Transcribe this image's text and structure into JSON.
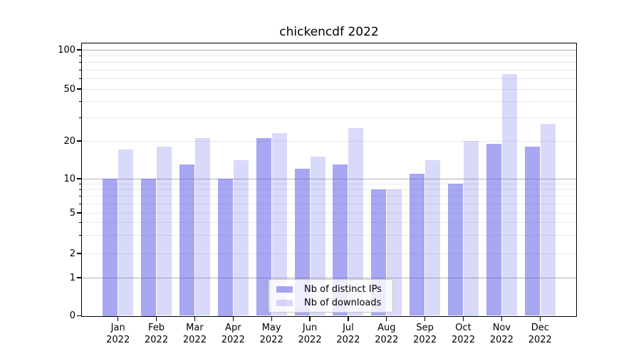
{
  "figure": {
    "title": "chickencdf 2022",
    "background": "#ffffff"
  },
  "legend": {
    "position": "lower center inside plot",
    "entries": [
      {
        "label": "Nb of distinct IPs",
        "swatch_color": "rgba(95,95,232,0.55)"
      },
      {
        "label": "Nb of downloads",
        "swatch_color": "rgba(95,95,232,0.24)"
      }
    ]
  },
  "chart_data": {
    "type": "bar",
    "title": "chickencdf 2022",
    "xlabel": "",
    "ylabel": "",
    "categories": [
      "Jan\n2022",
      "Feb\n2022",
      "Mar\n2022",
      "Apr\n2022",
      "May\n2022",
      "Jun\n2022",
      "Jul\n2022",
      "Aug\n2022",
      "Sep\n2022",
      "Oct\n2022",
      "Nov\n2022",
      "Dec\n2022"
    ],
    "series": [
      {
        "name": "Nb of distinct IPs",
        "color": "rgba(95,95,232,0.55)",
        "values": [
          10,
          10,
          13,
          10,
          21,
          12,
          13,
          8,
          11,
          9,
          19,
          18
        ]
      },
      {
        "name": "Nb of downloads",
        "color": "rgba(95,95,232,0.24)",
        "values": [
          17,
          18,
          21,
          14,
          23,
          15,
          25,
          8,
          14,
          20,
          65,
          27
        ]
      }
    ],
    "yscale": "asinh-symlog (linear 0-1, logarithmic above)",
    "ylim": [
      0,
      112
    ],
    "y_labeled_ticks": [
      0,
      1,
      2,
      5,
      10,
      20,
      50,
      100
    ],
    "y_minor_gridlines": [
      3,
      4,
      6,
      7,
      8,
      9,
      30,
      40,
      60,
      70,
      80,
      90
    ],
    "y_dark_gridlines": [
      1,
      10,
      100
    ],
    "grid": true,
    "legend_position": "lower center",
    "colors": {
      "bar_base": "#5f5fe8",
      "grid_major": "#b0b0b0",
      "grid_minor": "#e9e9e9",
      "axis": "#000000",
      "text": "#000000"
    }
  }
}
